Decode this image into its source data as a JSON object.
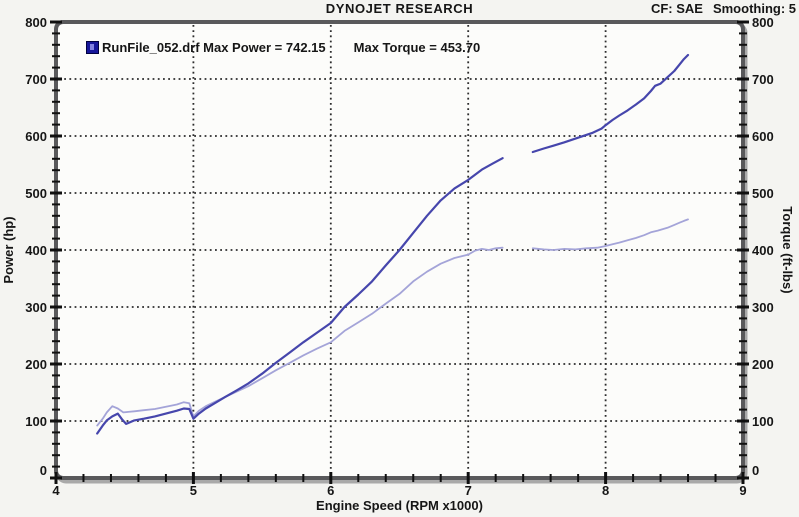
{
  "header": {
    "title": "DYNOJET RESEARCH",
    "correction": "CF: SAE",
    "smoothing": "Smoothing: 5"
  },
  "legend": {
    "run_label": "RunFile_052.drf",
    "max_power_label": "Max Power = 742.15",
    "max_torque_label": "Max Torque = 453.70",
    "marker_color": "#16169a"
  },
  "axes": {
    "left_title": "Power (hp)",
    "right_title": "Torque (ft-lbs)",
    "bottom_title": "Engine Speed (RPM x1000)"
  },
  "colors": {
    "background": "#f4f4f1",
    "plot_background": "#fcfcfa",
    "frame": "#59595b",
    "frame_shadow": "#a9a9a9",
    "grid": "#2c2c2c",
    "tick": "#101010",
    "text": "#161616",
    "power_line": "#4646ac",
    "torque_line": "#a4a4d8"
  },
  "chart_data": {
    "type": "line",
    "title": "DYNOJET RESEARCH",
    "xlabel": "Engine Speed (RPM x1000)",
    "ylabel_left": "Power (hp)",
    "ylabel_right": "Torque (ft-lbs)",
    "xlim": [
      4,
      9
    ],
    "ylim": [
      0,
      800
    ],
    "x_major_ticks": [
      4,
      5,
      6,
      7,
      8,
      9
    ],
    "y_major_ticks": [
      0,
      100,
      200,
      300,
      400,
      500,
      600,
      700,
      800
    ],
    "x_minor_step": 0.2,
    "y_minor_step": 20,
    "grid": "dotted lines at interior major ticks",
    "legend_position": "top-left inside plot",
    "correction_factor": "SAE",
    "smoothing": "5",
    "run_file": "RunFile_052.drf",
    "max_power_hp": 742.15,
    "max_torque_ftlbs": 453.7,
    "note": "both series share one run; data gap between 7.25 and 7.47 kRPM",
    "series": [
      {
        "name": "Torque (ft-lbs)",
        "axis": "right",
        "color": "#a4a4d8",
        "width": 1.8,
        "segments": [
          [
            [
              4.3,
              92
            ],
            [
              4.34,
              104
            ],
            [
              4.37,
              115
            ],
            [
              4.41,
              126
            ],
            [
              4.45,
              122
            ],
            [
              4.49,
              115
            ],
            [
              4.57,
              117
            ],
            [
              4.64,
              119
            ],
            [
              4.72,
              121
            ],
            [
              4.8,
              125
            ],
            [
              4.88,
              129
            ],
            [
              4.93,
              133
            ],
            [
              4.97,
              131
            ],
            [
              5.0,
              108
            ],
            [
              5.04,
              118
            ],
            [
              5.09,
              126
            ],
            [
              5.16,
              134
            ],
            [
              5.23,
              142
            ],
            [
              5.31,
              151
            ],
            [
              5.4,
              161
            ],
            [
              5.5,
              175
            ],
            [
              5.6,
              189
            ],
            [
              5.7,
              202
            ],
            [
              5.8,
              215
            ],
            [
              5.9,
              227
            ],
            [
              6.0,
              238
            ],
            [
              6.1,
              258
            ],
            [
              6.2,
              273
            ],
            [
              6.3,
              288
            ],
            [
              6.4,
              306
            ],
            [
              6.5,
              323
            ],
            [
              6.6,
              345
            ],
            [
              6.7,
              362
            ],
            [
              6.8,
              376
            ],
            [
              6.9,
              386
            ],
            [
              7.0,
              392
            ],
            [
              7.05,
              399
            ],
            [
              7.1,
              402
            ],
            [
              7.15,
              400
            ],
            [
              7.2,
              403
            ],
            [
              7.25,
              404
            ]
          ],
          [
            [
              7.47,
              403
            ],
            [
              7.55,
              401
            ],
            [
              7.62,
              400
            ],
            [
              7.7,
              402
            ],
            [
              7.78,
              401
            ],
            [
              7.86,
              403
            ],
            [
              7.94,
              404
            ],
            [
              8.0,
              407
            ],
            [
              8.05,
              410
            ],
            [
              8.1,
              413
            ],
            [
              8.16,
              417
            ],
            [
              8.22,
              421
            ],
            [
              8.28,
              426
            ],
            [
              8.33,
              431
            ],
            [
              8.38,
              434
            ],
            [
              8.45,
              439
            ],
            [
              8.5,
              444
            ],
            [
              8.54,
              448
            ],
            [
              8.57,
              451
            ],
            [
              8.6,
              453.7
            ]
          ]
        ]
      },
      {
        "name": "Power (hp)",
        "axis": "left",
        "color": "#4646ac",
        "width": 2.2,
        "segments": [
          [
            [
              4.3,
              78
            ],
            [
              4.34,
              92
            ],
            [
              4.37,
              101
            ],
            [
              4.41,
              108
            ],
            [
              4.45,
              113
            ],
            [
              4.48,
              103
            ],
            [
              4.51,
              95
            ],
            [
              4.57,
              101
            ],
            [
              4.64,
              104
            ],
            [
              4.72,
              108
            ],
            [
              4.8,
              113
            ],
            [
              4.88,
              118
            ],
            [
              4.93,
              122
            ],
            [
              4.97,
              121
            ],
            [
              5.0,
              104
            ],
            [
              5.04,
              113
            ],
            [
              5.09,
              122
            ],
            [
              5.16,
              132
            ],
            [
              5.23,
              142
            ],
            [
              5.31,
              153
            ],
            [
              5.4,
              166
            ],
            [
              5.5,
              183
            ],
            [
              5.6,
              202
            ],
            [
              5.7,
              220
            ],
            [
              5.8,
              238
            ],
            [
              5.9,
              255
            ],
            [
              6.0,
              272
            ],
            [
              6.1,
              300
            ],
            [
              6.2,
              322
            ],
            [
              6.3,
              345
            ],
            [
              6.4,
              373
            ],
            [
              6.5,
              400
            ],
            [
              6.6,
              430
            ],
            [
              6.7,
              460
            ],
            [
              6.8,
              487
            ],
            [
              6.9,
              508
            ],
            [
              7.0,
              523
            ],
            [
              7.1,
              541
            ],
            [
              7.18,
              552
            ],
            [
              7.25,
              561
            ]
          ],
          [
            [
              7.47,
              572
            ],
            [
              7.55,
              578
            ],
            [
              7.62,
              583
            ],
            [
              7.7,
              589
            ],
            [
              7.8,
              597
            ],
            [
              7.9,
              605
            ],
            [
              7.97,
              613
            ],
            [
              8.0,
              619
            ],
            [
              8.05,
              628
            ],
            [
              8.1,
              636
            ],
            [
              8.16,
              645
            ],
            [
              8.22,
              655
            ],
            [
              8.28,
              666
            ],
            [
              8.33,
              679
            ],
            [
              8.36,
              688
            ],
            [
              8.4,
              692
            ],
            [
              8.45,
              703
            ],
            [
              8.5,
              714
            ],
            [
              8.54,
              726
            ],
            [
              8.57,
              735
            ],
            [
              8.6,
              742.15
            ]
          ]
        ]
      }
    ]
  }
}
